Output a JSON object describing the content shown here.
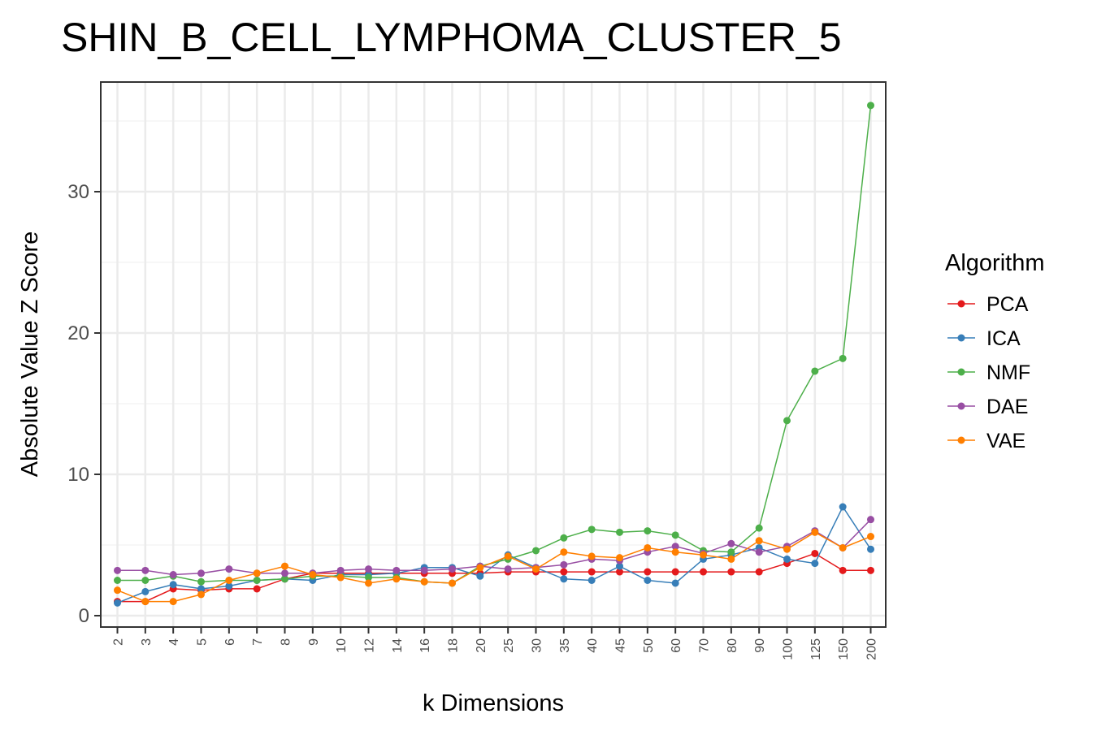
{
  "chart_data": {
    "type": "line",
    "title": "SHIN_B_CELL_LYMPHOMA_CLUSTER_5",
    "xlabel": "k Dimensions",
    "ylabel": "Absolute Value Z Score",
    "categories": [
      "2",
      "3",
      "4",
      "5",
      "6",
      "7",
      "8",
      "9",
      "10",
      "12",
      "14",
      "16",
      "18",
      "20",
      "25",
      "30",
      "35",
      "40",
      "45",
      "50",
      "60",
      "70",
      "80",
      "90",
      "100",
      "125",
      "150",
      "200"
    ],
    "ylim": [
      -0.8,
      37.5
    ],
    "yticks": [
      0,
      10,
      20,
      30
    ],
    "grid": true,
    "legend": {
      "title": "Algorithm",
      "position": "right"
    },
    "series": [
      {
        "name": "PCA",
        "color": "#E41A1C",
        "values": [
          1.0,
          1.0,
          1.9,
          1.8,
          1.9,
          1.9,
          2.6,
          3.0,
          3.0,
          3.0,
          3.0,
          3.0,
          3.0,
          3.0,
          3.1,
          3.1,
          3.1,
          3.1,
          3.1,
          3.1,
          3.1,
          3.1,
          3.1,
          3.1,
          3.7,
          4.4,
          3.2,
          3.2
        ]
      },
      {
        "name": "ICA",
        "color": "#377EB8",
        "values": [
          0.9,
          1.7,
          2.2,
          1.9,
          2.1,
          2.5,
          2.6,
          2.5,
          2.9,
          2.9,
          3.0,
          3.4,
          3.4,
          2.8,
          4.3,
          3.4,
          2.6,
          2.5,
          3.5,
          2.5,
          2.3,
          4.0,
          4.3,
          4.8,
          4.0,
          3.7,
          7.7,
          4.7
        ]
      },
      {
        "name": "NMF",
        "color": "#4DAF4A",
        "values": [
          2.5,
          2.5,
          2.8,
          2.4,
          2.5,
          2.5,
          2.6,
          2.8,
          2.8,
          2.7,
          2.7,
          2.4,
          2.3,
          3.5,
          4.0,
          4.6,
          5.5,
          6.1,
          5.9,
          6.0,
          5.7,
          4.6,
          4.5,
          6.2,
          13.8,
          17.3,
          18.2,
          36.1
        ]
      },
      {
        "name": "DAE",
        "color": "#984EA3",
        "values": [
          3.2,
          3.2,
          2.9,
          3.0,
          3.3,
          3.0,
          3.0,
          3.0,
          3.2,
          3.3,
          3.2,
          3.2,
          3.3,
          3.5,
          3.3,
          3.4,
          3.6,
          4.0,
          3.9,
          4.5,
          4.9,
          4.4,
          5.1,
          4.5,
          4.9,
          6.0,
          4.8,
          6.8
        ]
      },
      {
        "name": "VAE",
        "color": "#FF7F00",
        "values": [
          1.8,
          1.0,
          1.0,
          1.5,
          2.5,
          3.0,
          3.5,
          2.9,
          2.7,
          2.3,
          2.6,
          2.4,
          2.3,
          3.4,
          4.2,
          3.3,
          4.5,
          4.2,
          4.1,
          4.8,
          4.5,
          4.3,
          4.0,
          5.3,
          4.7,
          5.9,
          4.8,
          5.6
        ]
      }
    ]
  }
}
